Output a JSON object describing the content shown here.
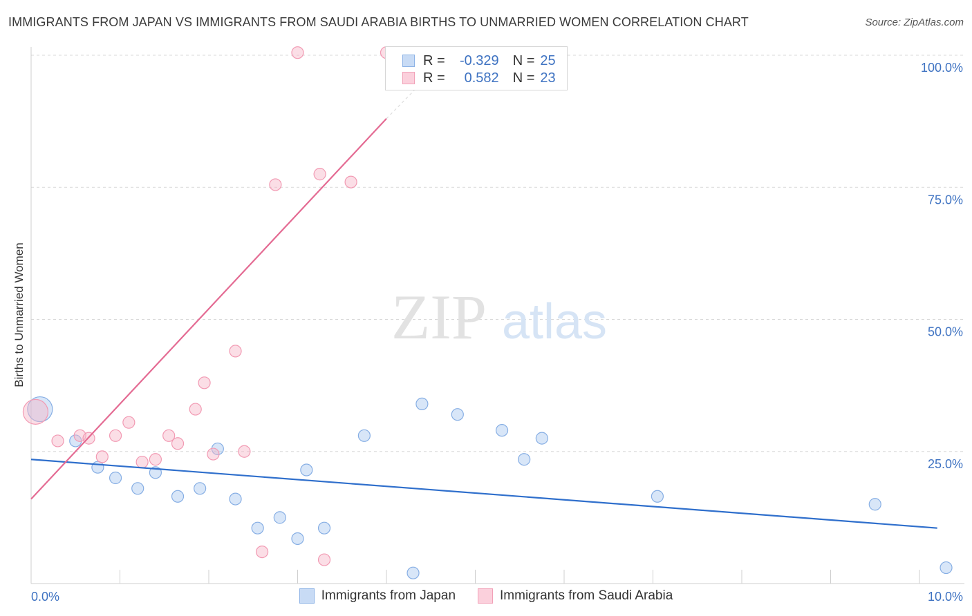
{
  "title": "IMMIGRANTS FROM JAPAN VS IMMIGRANTS FROM SAUDI ARABIA BIRTHS TO UNMARRIED WOMEN CORRELATION CHART",
  "source": "Source: ZipAtlas.com",
  "watermark": {
    "zip": "ZIP",
    "atlas": "atlas"
  },
  "legend_top": {
    "rows": [
      {
        "r_label": "R =",
        "r_value": "-0.329",
        "n_label": "N =",
        "n_value": "25",
        "color": "#a9c8ef"
      },
      {
        "r_label": "R =",
        "r_value": "0.582",
        "n_label": "N =",
        "n_value": "23",
        "color": "#f7b6c8"
      }
    ]
  },
  "bottom_legend": [
    {
      "label": "Immigrants from Japan",
      "color": "#a9c8ef"
    },
    {
      "label": "Immigrants from Saudi Arabia",
      "color": "#f7b6c8"
    }
  ],
  "chart_data": {
    "type": "scatter",
    "title": "IMMIGRANTS FROM JAPAN VS IMMIGRANTS FROM SAUDI ARABIA BIRTHS TO UNMARRIED WOMEN CORRELATION CHART",
    "xlabel": "",
    "ylabel": "Births to Unmarried Women",
    "xlim": [
      0,
      10
    ],
    "ylim": [
      0,
      100
    ],
    "x_tick_labels": [
      "0.0%",
      "10.0%"
    ],
    "y_tick_labels": [
      "25.0%",
      "50.0%",
      "75.0%",
      "100.0%"
    ],
    "y_ticks": [
      25,
      50,
      75,
      100
    ],
    "grid": "horizontal dashed",
    "legend": "bottom",
    "series": [
      {
        "name": "Immigrants from Japan",
        "color": "#a9c8ef",
        "line_color": "#2f6fcc",
        "points": [
          {
            "x": 0.1,
            "y": 33,
            "size": "large"
          },
          {
            "x": 0.5,
            "y": 27
          },
          {
            "x": 0.75,
            "y": 22
          },
          {
            "x": 0.95,
            "y": 20
          },
          {
            "x": 1.2,
            "y": 18
          },
          {
            "x": 1.4,
            "y": 21
          },
          {
            "x": 1.65,
            "y": 16.5
          },
          {
            "x": 1.9,
            "y": 18
          },
          {
            "x": 2.1,
            "y": 25.5
          },
          {
            "x": 2.3,
            "y": 16
          },
          {
            "x": 2.55,
            "y": 10.5
          },
          {
            "x": 2.8,
            "y": 12.5
          },
          {
            "x": 3.0,
            "y": 8.5
          },
          {
            "x": 3.1,
            "y": 21.5
          },
          {
            "x": 3.3,
            "y": 10.5
          },
          {
            "x": 3.75,
            "y": 28
          },
          {
            "x": 4.4,
            "y": 34
          },
          {
            "x": 4.3,
            "y": 2
          },
          {
            "x": 4.8,
            "y": 32
          },
          {
            "x": 5.3,
            "y": 29
          },
          {
            "x": 5.55,
            "y": 23.5
          },
          {
            "x": 5.75,
            "y": 27.5
          },
          {
            "x": 7.05,
            "y": 16.5
          },
          {
            "x": 9.5,
            "y": 15
          },
          {
            "x": 10.3,
            "y": 3
          }
        ],
        "trend": {
          "x1": 0,
          "y1": 23.5,
          "x2": 10.2,
          "y2": 10.5
        }
      },
      {
        "name": "Immigrants from Saudi Arabia",
        "color": "#f7b6c8",
        "line_color": "#e46b93",
        "points": [
          {
            "x": 0.05,
            "y": 32.5,
            "size": "large"
          },
          {
            "x": 0.3,
            "y": 27
          },
          {
            "x": 0.55,
            "y": 28
          },
          {
            "x": 0.65,
            "y": 27.5
          },
          {
            "x": 0.8,
            "y": 24
          },
          {
            "x": 0.95,
            "y": 28
          },
          {
            "x": 1.1,
            "y": 30.5
          },
          {
            "x": 1.25,
            "y": 23
          },
          {
            "x": 1.4,
            "y": 23.5
          },
          {
            "x": 1.55,
            "y": 28
          },
          {
            "x": 1.65,
            "y": 26.5
          },
          {
            "x": 1.85,
            "y": 33
          },
          {
            "x": 1.95,
            "y": 38
          },
          {
            "x": 2.05,
            "y": 24.5
          },
          {
            "x": 2.3,
            "y": 44
          },
          {
            "x": 2.4,
            "y": 25
          },
          {
            "x": 2.6,
            "y": 6
          },
          {
            "x": 2.75,
            "y": 75.5
          },
          {
            "x": 3.0,
            "y": 100.5
          },
          {
            "x": 3.25,
            "y": 77.5
          },
          {
            "x": 3.3,
            "y": 4.5
          },
          {
            "x": 3.6,
            "y": 76
          },
          {
            "x": 4.0,
            "y": 100.5
          }
        ],
        "trend": {
          "x1": 0,
          "y1": 16,
          "x2": 4.0,
          "y2": 88,
          "dashed_to": {
            "x": 4.35,
            "y": 94
          }
        }
      }
    ]
  }
}
